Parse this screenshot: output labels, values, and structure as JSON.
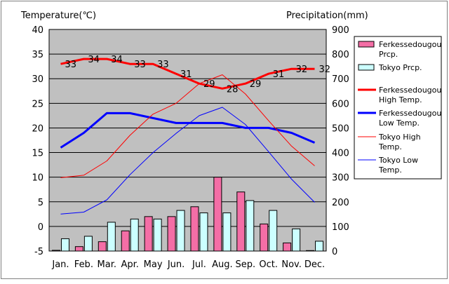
{
  "chart_data": {
    "type": "bar+line",
    "left_axis_title": "Temperature(℃)",
    "right_axis_title": "Precipitation(mm)",
    "categories": [
      "Jan.",
      "Feb.",
      "Mar.",
      "Apr.",
      "May",
      "Jun.",
      "Jul.",
      "Aug.",
      "Sep.",
      "Oct.",
      "Nov.",
      "Dec."
    ],
    "y_left": {
      "min": -5,
      "max": 40,
      "ticks": [
        "40",
        "35",
        "30",
        "25",
        "20",
        "15",
        "10",
        "5",
        "0",
        "-5"
      ]
    },
    "y_right": {
      "min": 0,
      "max": 900,
      "ticks": [
        "900",
        "800",
        "700",
        "600",
        "500",
        "400",
        "300",
        "200",
        "100",
        "0"
      ]
    },
    "bar_series": [
      {
        "name": "Ferkessedougou Prcp.",
        "color": "#f46ea6",
        "unit": "mm",
        "values": [
          3,
          18,
          38,
          82,
          140,
          140,
          180,
          300,
          240,
          110,
          33,
          2
        ]
      },
      {
        "name": "Tokyo Prcp.",
        "color": "#ccffff",
        "unit": "mm",
        "values": [
          50,
          60,
          117,
          130,
          130,
          165,
          155,
          155,
          205,
          165,
          90,
          40
        ]
      }
    ],
    "line_series": [
      {
        "name": "Ferkessedougou High Temp.",
        "color": "#ff0000",
        "width": "thick",
        "values": [
          33,
          34,
          34,
          33,
          33,
          31,
          29,
          28,
          29,
          31,
          32,
          32
        ],
        "labels": [
          "33",
          "34",
          "34",
          "33",
          "33",
          "31",
          "29",
          "28",
          "29",
          "31",
          "32",
          "32"
        ]
      },
      {
        "name": "Ferkessedougou Low Temp.",
        "color": "#0000ff",
        "width": "thick",
        "values": [
          16,
          19,
          23,
          23,
          22,
          21,
          21,
          21,
          20,
          20,
          19,
          17
        ]
      },
      {
        "name": "Tokyo High Temp.",
        "color": "#ff0000",
        "width": "thin",
        "values": [
          9.9,
          10.4,
          13.3,
          18.5,
          22.8,
          25.0,
          29.0,
          30.8,
          26.9,
          21.5,
          16.3,
          12.3
        ]
      },
      {
        "name": "Tokyo Low Temp.",
        "color": "#0000ff",
        "width": "thin",
        "values": [
          2.5,
          2.9,
          5.4,
          10.5,
          15.0,
          18.9,
          22.5,
          24.2,
          20.7,
          15.2,
          9.6,
          4.9
        ]
      }
    ],
    "legend": [
      {
        "kind": "bar",
        "color": "#f46ea6",
        "lines": [
          "Ferkessedougou",
          "Prcp."
        ]
      },
      {
        "kind": "bar",
        "color": "#ccffff",
        "lines": [
          "Tokyo Prcp."
        ]
      },
      {
        "kind": "line-thick",
        "color": "#ff0000",
        "lines": [
          "Ferkessedougou",
          "High Temp."
        ]
      },
      {
        "kind": "line-thick",
        "color": "#0000ff",
        "lines": [
          "Ferkessedougou",
          "Low Temp."
        ]
      },
      {
        "kind": "line-thin",
        "color": "#ff0000",
        "lines": [
          "Tokyo High",
          "Temp."
        ]
      },
      {
        "kind": "line-thin",
        "color": "#0000ff",
        "lines": [
          "Tokyo Low",
          "Temp."
        ]
      }
    ],
    "legend_position": "right",
    "plot_background": "#c0c0c0",
    "grid": true
  }
}
